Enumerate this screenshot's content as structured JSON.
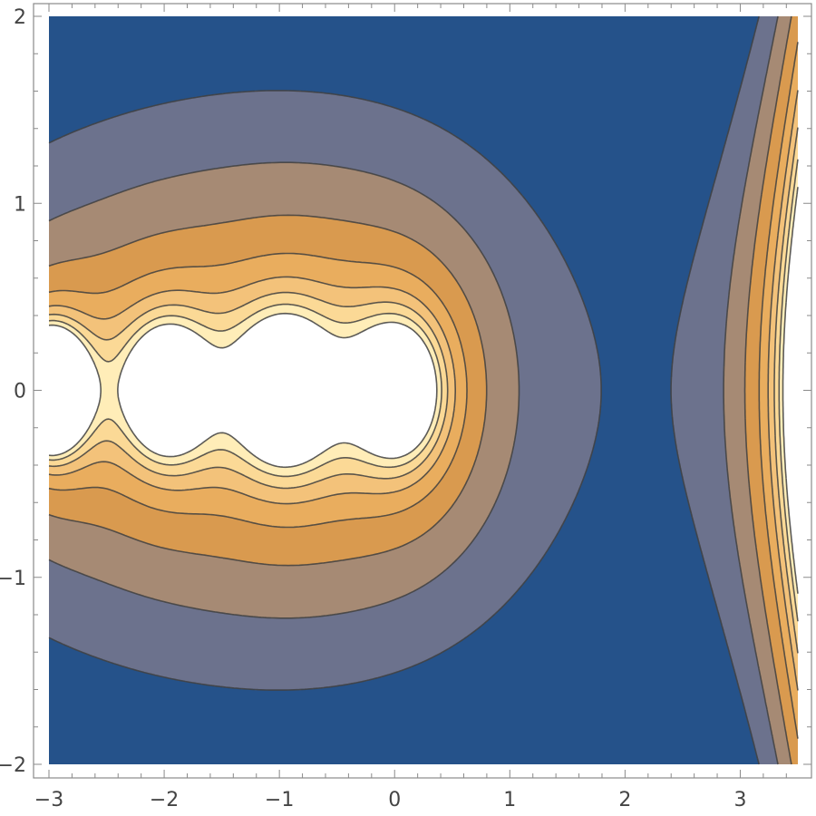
{
  "chart_data": {
    "type": "contour",
    "title": "",
    "xlabel": "",
    "ylabel": "",
    "xlim": [
      -3,
      3.5
    ],
    "ylim": [
      -2,
      2
    ],
    "x_ticks": [
      -3,
      -2,
      -1,
      0,
      1,
      2,
      3
    ],
    "y_ticks": [
      -2,
      -1,
      0,
      1,
      2
    ],
    "x_tick_labels": [
      "−3",
      "−2",
      "−1",
      "0",
      "1",
      "2",
      "3"
    ],
    "y_tick_labels": [
      "−2",
      "−1",
      "0",
      "1",
      "2"
    ],
    "frame_ticks": true,
    "grid": false,
    "legend": "none",
    "colormap": [
      "#25528a",
      "#6c728d",
      "#a68a74",
      "#d99a4f",
      "#e9ad5e",
      "#f3c27a",
      "#fbd996",
      "#ffedb8",
      "#ffffff"
    ],
    "contour_line_color": "#3f3f3f",
    "features": [
      {
        "kind": "peak",
        "x": -0.96,
        "y": 0.0
      },
      {
        "kind": "peak",
        "x": 0.04,
        "y": 0.0
      },
      {
        "kind": "saddle",
        "x": -0.48,
        "y": 0.0
      },
      {
        "kind": "peak",
        "x": -1.98,
        "y": 0.0
      },
      {
        "kind": "peak",
        "x": -3.0,
        "y": 0.0
      },
      {
        "kind": "rising-edge",
        "x": 3.5,
        "y": 0.0
      }
    ]
  }
}
